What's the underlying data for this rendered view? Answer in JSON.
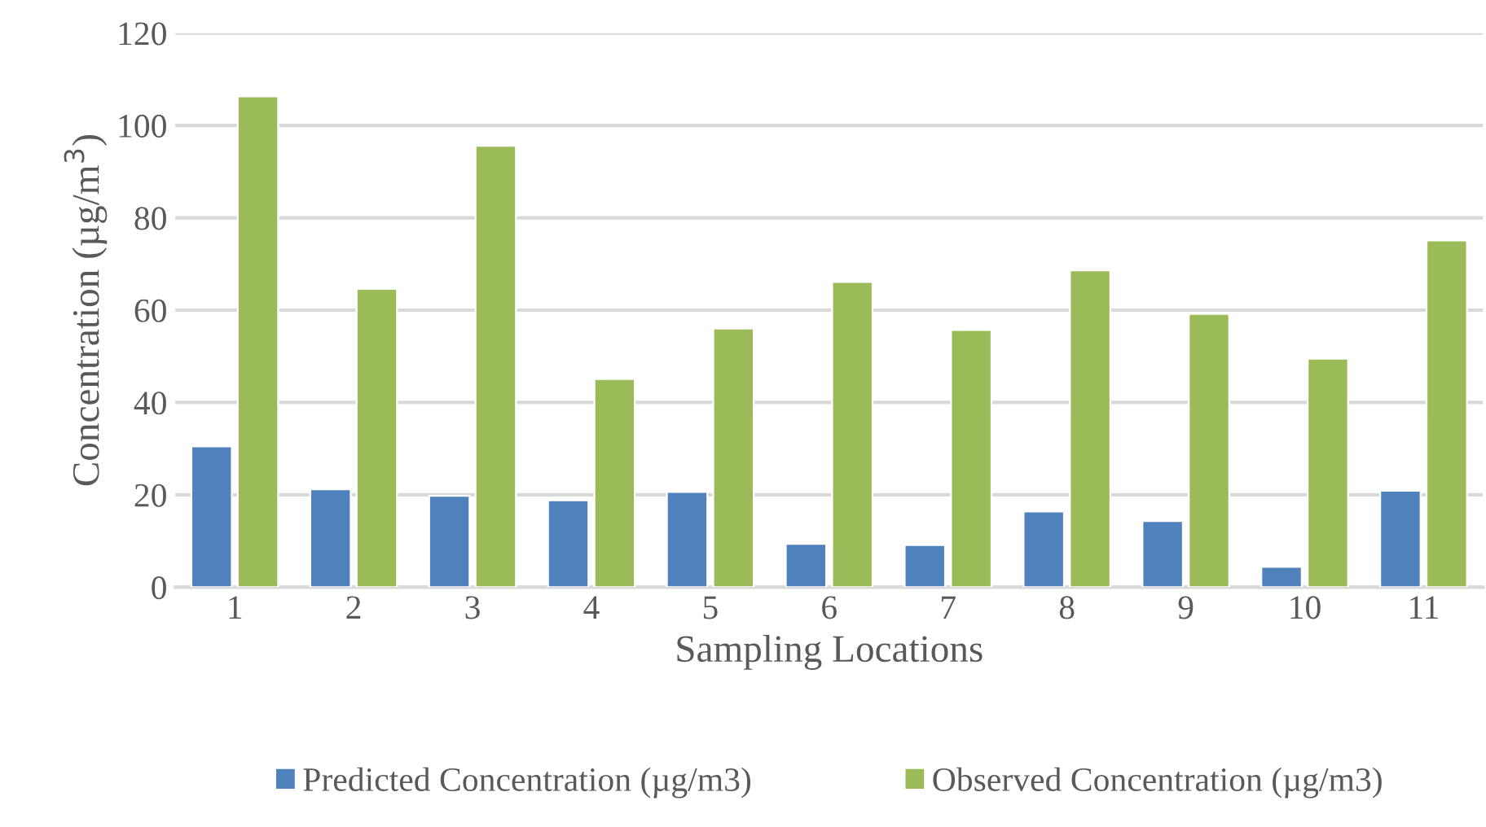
{
  "chart_data": {
    "type": "bar",
    "xlabel": "Sampling Locations",
    "ylabel": "Concentration (µg/m$^{3}$)",
    "categories": [
      "1",
      "2",
      "3",
      "4",
      "5",
      "6",
      "7",
      "8",
      "9",
      "10",
      "11"
    ],
    "series": [
      {
        "name": "Predicted Concentration (µg/m3)",
        "color": "#4f81bd",
        "values": [
          30.5,
          21.2,
          19.8,
          18.8,
          20.6,
          9.4,
          9.1,
          16.4,
          14.3,
          4.4,
          20.9
        ]
      },
      {
        "name": "Observed Concentration (µg/m3)",
        "color": "#9bbb59",
        "values": [
          106.3,
          64.6,
          95.6,
          45.1,
          56.0,
          66.1,
          55.7,
          68.6,
          59.2,
          49.5,
          75.1
        ]
      }
    ],
    "ylim": [
      0,
      120
    ],
    "yticks": [
      0,
      20,
      40,
      60,
      80,
      100,
      120
    ],
    "grid": "y",
    "legend": "bottom"
  }
}
